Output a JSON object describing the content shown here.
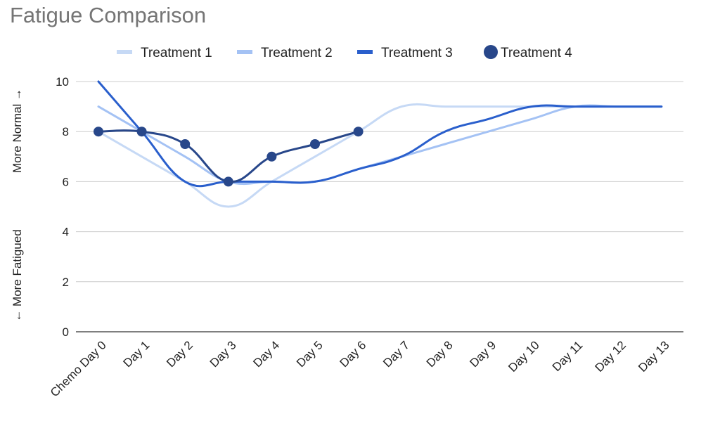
{
  "chart_data": {
    "type": "line",
    "title": "Fatigue Comparison",
    "ylabel_top": "More Normal →",
    "ylabel_bottom": "← More Fatigued",
    "ylim": [
      0,
      10
    ],
    "yticks": [
      0,
      2,
      4,
      6,
      8,
      10
    ],
    "grid": true,
    "legend_position": "top",
    "categories": [
      "Chemo Day 0",
      "Day 1",
      "Day 2",
      "Day 3",
      "Day 4",
      "Day 5",
      "Day 6",
      "Day 7",
      "Day 8",
      "Day 9",
      "Day 10",
      "Day 11",
      "Day 12",
      "Day 13"
    ],
    "series": [
      {
        "name": "Treatment 1",
        "color": "#c6d9f5",
        "markers": false,
        "values": [
          8,
          7,
          6,
          5,
          6,
          7,
          8,
          9,
          9,
          9,
          9,
          9,
          9,
          9
        ]
      },
      {
        "name": "Treatment 2",
        "color": "#a4c2f4",
        "markers": false,
        "values": [
          9,
          8,
          7,
          6,
          6,
          6,
          6.5,
          7,
          7.5,
          8,
          8.5,
          9,
          9,
          9
        ]
      },
      {
        "name": "Treatment 3",
        "color": "#2a5fcc",
        "markers": false,
        "values": [
          10,
          8,
          6,
          6,
          6,
          6,
          6.5,
          7,
          8,
          8.5,
          9,
          9,
          9,
          9
        ]
      },
      {
        "name": "Treatment 4",
        "color": "#28478a",
        "markers": true,
        "values": [
          8,
          8,
          7.5,
          6,
          7,
          7.5,
          8,
          null,
          null,
          null,
          null,
          null,
          null,
          null
        ]
      }
    ]
  }
}
